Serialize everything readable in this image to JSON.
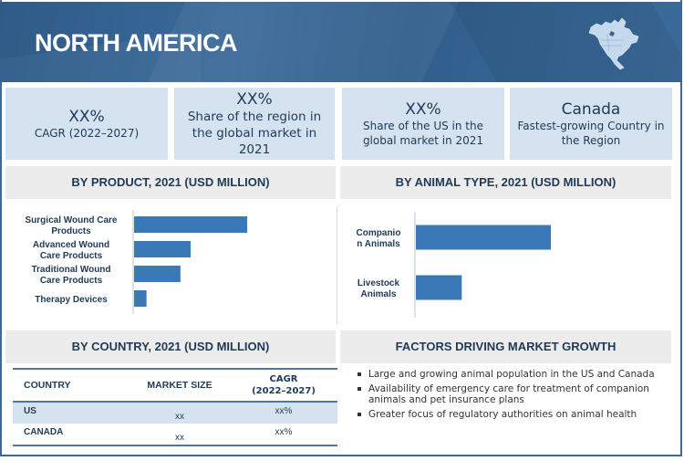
{
  "header": {
    "title": "NORTH AMERICA",
    "icon": "north-america-map-icon"
  },
  "kpis": [
    {
      "value": "XX%",
      "label": "CAGR (2022–2027)"
    },
    {
      "value": "XX%",
      "label": "Share of the region in the global market in 2021"
    },
    {
      "value": "XX%",
      "label": "Share of the US in the global market in 2021"
    },
    {
      "value": "Canada",
      "label": "Fastest-growing Country in the Region"
    }
  ],
  "sections": {
    "by_product": "BY PRODUCT, 2021 (USD MILLION)",
    "by_animal": "BY ANIMAL TYPE, 2021 (USD MILLION)",
    "by_country": "BY COUNTRY, 2021 (USD MILLION)",
    "factors": "FACTORS DRIVING MARKET GROWTH"
  },
  "chart_data": [
    {
      "type": "bar",
      "orientation": "horizontal",
      "title": "BY PRODUCT, 2021 (USD MILLION)",
      "categories": [
        [
          "Surgical Wound Care",
          "Products"
        ],
        [
          "Advanced Wound",
          "Care Products"
        ],
        [
          "Traditional Wound",
          "Care Products"
        ],
        [
          "Therapy Devices"
        ]
      ],
      "values": [
        100,
        50,
        41,
        11
      ],
      "value_units": "relative (no axis shown)",
      "xlabel": "",
      "ylabel": "",
      "grid": false,
      "color": "#3a78b7"
    },
    {
      "type": "bar",
      "orientation": "horizontal",
      "title": "BY ANIMAL TYPE, 2021 (USD MILLION)",
      "categories": [
        [
          "Companio",
          "n Animals"
        ],
        [
          "Livestock",
          "Animals"
        ]
      ],
      "values": [
        100,
        34
      ],
      "value_units": "relative (no axis shown)",
      "xlabel": "",
      "ylabel": "",
      "grid": false,
      "color": "#3a78b7"
    }
  ],
  "country_table": {
    "headers": [
      "COUNTRY",
      "MARKET SIZE",
      "CAGR (2022–2027)"
    ],
    "header_cagr_line1": "CAGR",
    "header_cagr_line2": "(2022–2027)",
    "rows": [
      {
        "country": "US",
        "market_size": "xx",
        "cagr": "xx%"
      },
      {
        "country": "CANADA",
        "market_size": "xx",
        "cagr": "xx%"
      }
    ]
  },
  "factors": [
    "Large and growing animal population in the US and Canada",
    "Availability of emergency care for treatment of companion animals and pet insurance plans",
    "Greater focus of regulatory authorities on animal health"
  ],
  "colors": {
    "banner": "#34618f",
    "kpi_bg": "#d5e3f0",
    "section_bg": "#ececec",
    "bar": "#3a78b7",
    "text": "#1f3a56"
  }
}
